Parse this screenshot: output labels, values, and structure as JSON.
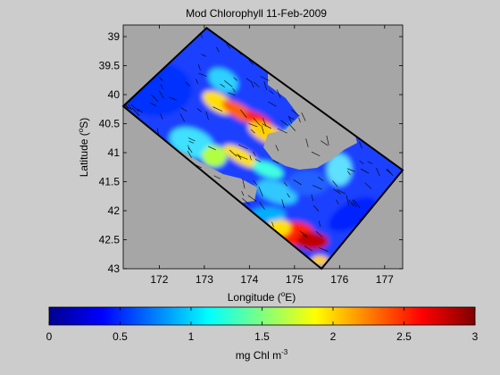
{
  "chart_data": {
    "type": "heatmap",
    "title": "Mod Chlorophyll 11-Feb-2009",
    "xlabel": "Longitude (",
    "xlabel_sup": "o",
    "xlabel_end": "E)",
    "ylabel": "Latitude (",
    "ylabel_sup": "o",
    "ylabel_end": "S)",
    "xlim": [
      171.2,
      177.4
    ],
    "ylim": [
      38.8,
      43.0
    ],
    "y_reversed": true,
    "x_ticks": [
      172,
      173,
      174,
      175,
      176,
      177
    ],
    "y_ticks": [
      39,
      39.5,
      40,
      40.5,
      41,
      41.5,
      42,
      42.5,
      43
    ],
    "domain_outline": [
      [
        173.05,
        38.85
      ],
      [
        171.2,
        40.2
      ],
      [
        175.6,
        43.0
      ],
      [
        177.4,
        41.3
      ],
      [
        173.05,
        38.85
      ]
    ],
    "background_color": "#a6a6a6",
    "colorbar": {
      "label": "mg Chl m",
      "label_sup": "-3",
      "range": [
        0,
        3
      ],
      "ticks": [
        0,
        0.5,
        1,
        1.5,
        2,
        2.5,
        3
      ],
      "colormap": "jet"
    },
    "notes_visible": "velocity vectors overlaid"
  }
}
